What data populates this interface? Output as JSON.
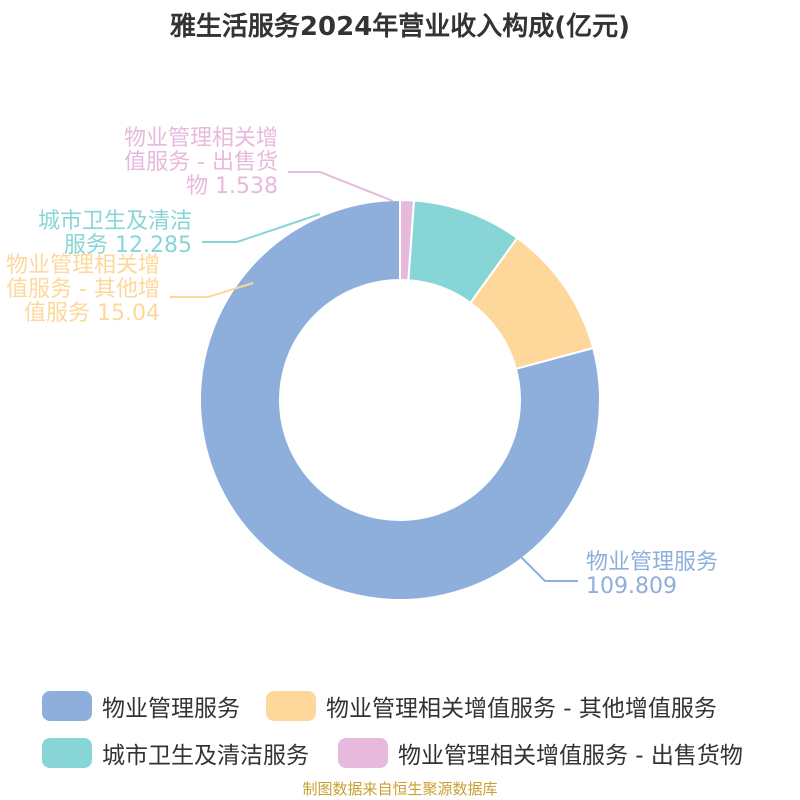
{
  "chart_data": {
    "type": "pie",
    "variant": "donut",
    "title": "雅生活服务2024年营业收入构成(亿元)",
    "slices": [
      {
        "name": "物业管理服务",
        "value": 109.809,
        "color": "#8eaedb",
        "label_lines": [
          "物业管理服务",
          "109.809"
        ]
      },
      {
        "name": "物业管理相关增值服务 - 其他增值服务",
        "value": 15.04,
        "color": "#fdd89a",
        "label_lines": [
          "物业管理相关增",
          "值服务 - 其他增",
          "值服务 15.04"
        ]
      },
      {
        "name": "城市卫生及清洁服务",
        "value": 12.285,
        "color": "#88d5d8",
        "label_lines": [
          "城市卫生及清洁",
          "服务 12.285"
        ]
      },
      {
        "name": "物业管理相关增值服务 - 出售货物",
        "value": 1.538,
        "color": "#e7b9dc",
        "label_lines": [
          "物业管理相关增",
          "值服务 - 出售货",
          "物 1.538"
        ]
      }
    ],
    "legend_position": "bottom"
  },
  "source_note": "制图数据来自恒生聚源数据库"
}
